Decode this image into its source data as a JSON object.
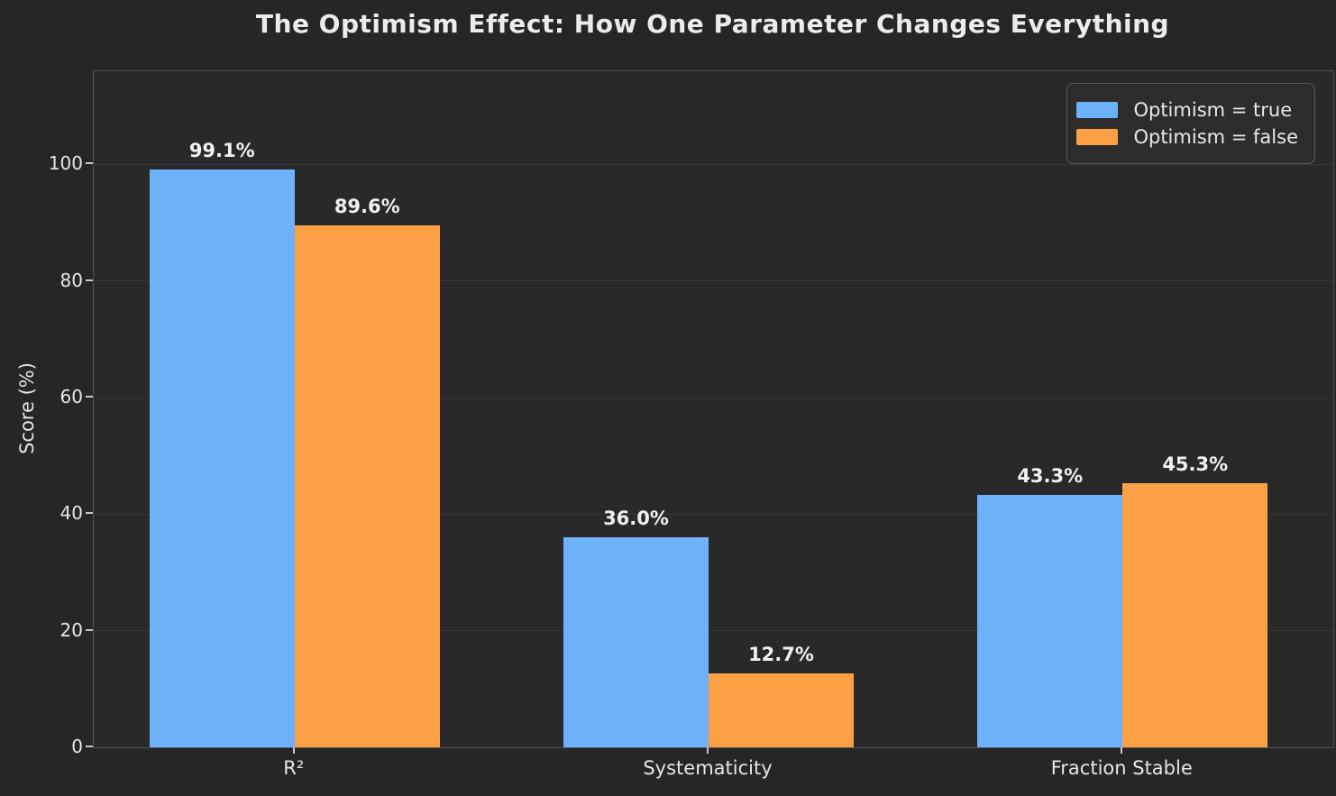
{
  "figure": {
    "background_color": "#262626",
    "plot_background_color": "#292929",
    "grid_color": "#373737",
    "text_color": "#e6e6e6"
  },
  "chart_data": {
    "type": "bar",
    "title": "The Optimism Effect: How One Parameter Changes Everything",
    "xlabel": "",
    "ylabel": "Score (%)",
    "categories": [
      "R²",
      "Systematicity",
      "Fraction Stable"
    ],
    "series": [
      {
        "name": "Optimism = true",
        "color": "#6db1fa",
        "values": [
          99.1,
          36.0,
          43.3
        ],
        "labels": [
          "99.1%",
          "36.0%",
          "43.3%"
        ]
      },
      {
        "name": "Optimism = false",
        "color": "#fca046",
        "values": [
          89.6,
          12.7,
          45.3
        ],
        "labels": [
          "89.6%",
          "12.7%",
          "45.3%"
        ]
      }
    ],
    "yticks": [
      0,
      20,
      40,
      60,
      80,
      100
    ],
    "ylim": [
      0,
      116
    ],
    "grid": "horizontal",
    "legend_position": "upper right"
  }
}
